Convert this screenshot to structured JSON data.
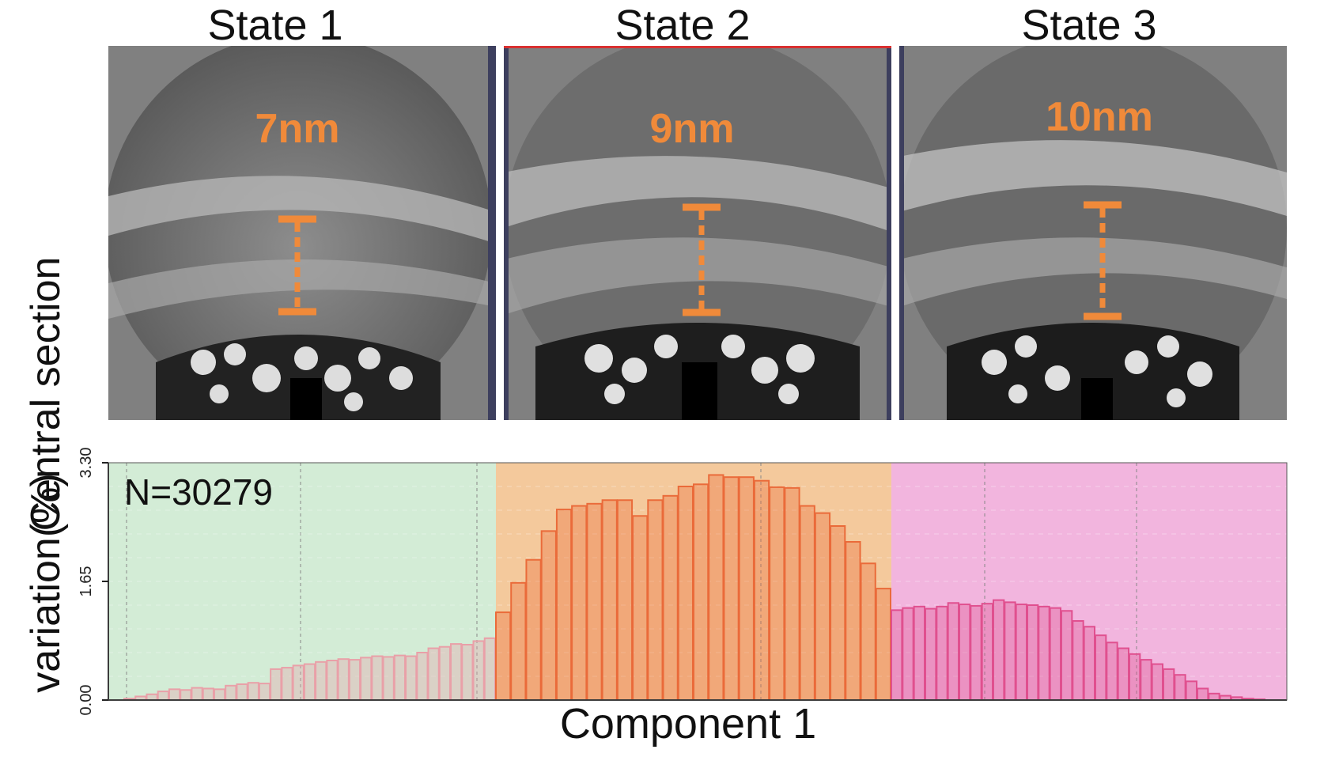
{
  "states": [
    {
      "title": "State 1",
      "distance": "7nm"
    },
    {
      "title": "State 2",
      "distance": "9nm"
    },
    {
      "title": "State 3",
      "distance": "10nm"
    }
  ],
  "top_ylabel": "Central section",
  "colors": {
    "annotation": "#f08a3a",
    "state1_bg": "#d3ecd6",
    "state2_bg": "#f4c99c",
    "state3_bg": "#f2b5de",
    "state1_bar": "#e9a0a8",
    "state2_bar": "#ea6b3a",
    "state3_bar": "#e0508f"
  },
  "chart_data": {
    "type": "bar",
    "xlabel": "Component 1",
    "ylabel": "variation(%)",
    "yticks": [
      "0.00",
      "1.65",
      "3.30"
    ],
    "ylim": [
      0,
      3.3
    ],
    "annotation": "N=30279",
    "grid": true,
    "series": [
      {
        "values": [
          0.02,
          0.05,
          0.08,
          0.12,
          0.15,
          0.14,
          0.17,
          0.16,
          0.15,
          0.2,
          0.22,
          0.24,
          0.23,
          0.43,
          0.45,
          0.48,
          0.5,
          0.53,
          0.55,
          0.57,
          0.56,
          0.59,
          0.61,
          0.6,
          0.62,
          0.61,
          0.66,
          0.72,
          0.74,
          0.78,
          0.77,
          0.82,
          0.86
        ]
      },
      {
        "values": [
          1.22,
          1.63,
          1.95,
          2.35,
          2.65,
          2.7,
          2.73,
          2.78,
          2.78,
          2.56,
          2.78,
          2.84,
          2.97,
          3.0,
          3.13,
          3.1,
          3.1,
          3.05,
          2.96,
          2.95,
          2.7,
          2.6,
          2.42,
          2.2,
          1.9,
          1.55
        ]
      },
      {
        "values": [
          1.25,
          1.28,
          1.3,
          1.27,
          1.3,
          1.35,
          1.33,
          1.31,
          1.34,
          1.39,
          1.36,
          1.33,
          1.32,
          1.3,
          1.28,
          1.24,
          1.1,
          1.02,
          0.9,
          0.8,
          0.72,
          0.64,
          0.56,
          0.5,
          0.43,
          0.35,
          0.26,
          0.16,
          0.09,
          0.06,
          0.04,
          0.02,
          0.01
        ]
      }
    ]
  }
}
